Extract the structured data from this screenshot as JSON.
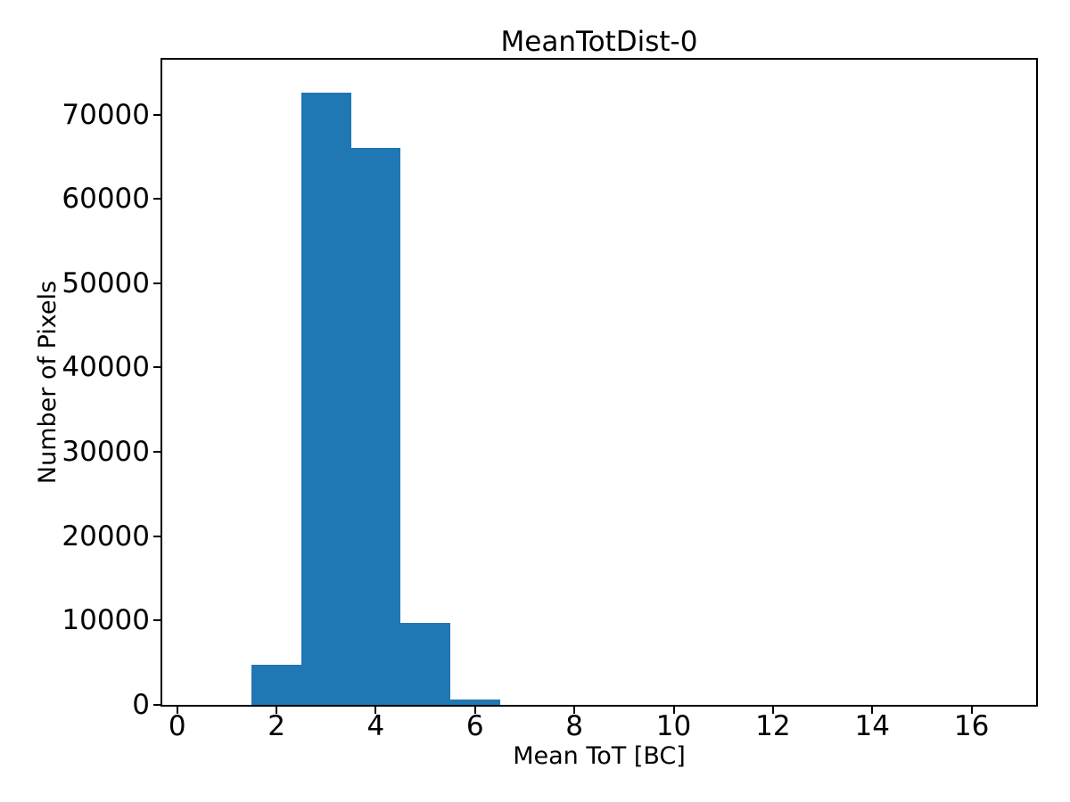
{
  "chart_data": {
    "type": "bar",
    "subtype": "histogram",
    "title": "MeanTotDist-0",
    "xlabel": "Mean ToT [BC]",
    "ylabel": "Number of Pixels",
    "bar_color": "#1f77b4",
    "text_color": "#000000",
    "spine_color": "#000000",
    "background_color": "#ffffff",
    "grid": false,
    "legend": false,
    "xlim": [
      -0.3,
      17.3
    ],
    "ylim": [
      0,
      76500
    ],
    "x_ticks": [
      0,
      2,
      4,
      6,
      8,
      10,
      12,
      14,
      16
    ],
    "y_ticks": [
      0,
      10000,
      20000,
      30000,
      40000,
      50000,
      60000,
      70000
    ],
    "bin_edges": [
      1.5,
      2.5,
      3.5,
      4.5,
      5.5,
      6.5
    ],
    "counts": [
      4800,
      72600,
      66000,
      9700,
      650
    ]
  }
}
